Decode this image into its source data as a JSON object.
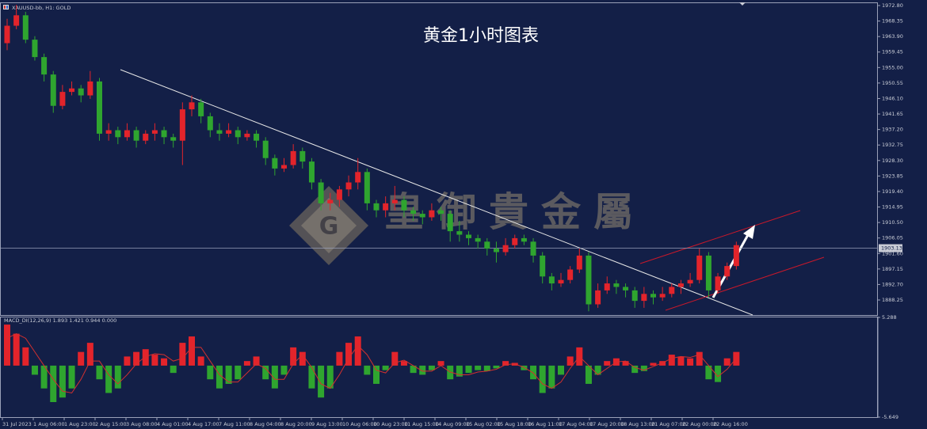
{
  "chart_data": [
    {
      "type": "candlestick",
      "title": "黄金1小时图表",
      "symbol_label": "XAUUSD-bb, H1: GOLD",
      "watermark": "皇御貴金屬",
      "up_color": "#e3242b",
      "down_color": "#2fa52f",
      "open": [
        1962,
        1967,
        1970,
        1963,
        1958,
        1953,
        1944,
        1948,
        1949,
        1947,
        1951,
        1936,
        1937,
        1935,
        1937,
        1934,
        1936,
        1937,
        1935,
        1934,
        1943,
        1945,
        1941,
        1937,
        1936,
        1937,
        1935,
        1936,
        1934,
        1929,
        1926,
        1927,
        1931,
        1928,
        1922,
        1916,
        1917,
        1920,
        1922,
        1925,
        1916,
        1914,
        1916,
        1917,
        1914,
        1913,
        1912,
        1914,
        1913,
        1908,
        1907,
        1906,
        1905,
        1903,
        1902,
        1904,
        1906,
        1905,
        1901,
        1895,
        1893,
        1894,
        1897,
        1901,
        1887,
        1891,
        1893,
        1892,
        1891,
        1888,
        1890,
        1889,
        1890,
        1892,
        1893,
        1894,
        1901,
        1891,
        1895,
        1898
      ],
      "high": [
        1969,
        1973,
        1971,
        1964,
        1959,
        1954,
        1950,
        1951,
        1950,
        1954,
        1952,
        1939,
        1938,
        1939,
        1938,
        1937,
        1939,
        1938,
        1936,
        1945,
        1947,
        1946,
        1942,
        1939,
        1939,
        1938,
        1937,
        1937,
        1935,
        1930,
        1929,
        1933,
        1932,
        1929,
        1923,
        1919,
        1921,
        1924,
        1929,
        1926,
        1917,
        1918,
        1921,
        1918,
        1915,
        1914,
        1916,
        1915,
        1914,
        1911,
        1908,
        1907,
        1906,
        1905,
        1906,
        1907,
        1907,
        1906,
        1902,
        1896,
        1896,
        1898,
        1903,
        1902,
        1893,
        1895,
        1894,
        1893,
        1892,
        1892,
        1891,
        1892,
        1893,
        1894,
        1896,
        1903,
        1902,
        1896,
        1899,
        1905
      ],
      "low": [
        1960,
        1966,
        1962,
        1957,
        1951,
        1942,
        1943,
        1947,
        1945,
        1946,
        1934,
        1934,
        1933,
        1934,
        1932,
        1933,
        1934,
        1933,
        1932,
        1927,
        1941,
        1939,
        1935,
        1934,
        1935,
        1933,
        1934,
        1932,
        1927,
        1924,
        1925,
        1926,
        1926,
        1920,
        1914,
        1914,
        1915,
        1918,
        1920,
        1914,
        1912,
        1912,
        1914,
        1912,
        1911,
        1910,
        1911,
        1911,
        1905,
        1905,
        1904,
        1903,
        1901,
        1899,
        1901,
        1903,
        1904,
        1899,
        1893,
        1891,
        1892,
        1893,
        1896,
        1885,
        1886,
        1890,
        1890,
        1889,
        1886,
        1886,
        1887,
        1888,
        1889,
        1890,
        1892,
        1893,
        1889,
        1890,
        1894,
        1897
      ],
      "close": [
        1967,
        1970,
        1963,
        1958,
        1953,
        1944,
        1948,
        1949,
        1947,
        1951,
        1936,
        1937,
        1935,
        1937,
        1934,
        1936,
        1937,
        1935,
        1934,
        1943,
        1945,
        1941,
        1937,
        1936,
        1937,
        1935,
        1936,
        1934,
        1929,
        1926,
        1927,
        1931,
        1928,
        1922,
        1916,
        1917,
        1920,
        1922,
        1925,
        1916,
        1914,
        1916,
        1917,
        1914,
        1913,
        1912,
        1914,
        1913,
        1908,
        1907,
        1906,
        1905,
        1903,
        1902,
        1904,
        1906,
        1905,
        1901,
        1895,
        1893,
        1894,
        1897,
        1901,
        1887,
        1891,
        1893,
        1892,
        1891,
        1888,
        1890,
        1889,
        1890,
        1892,
        1893,
        1894,
        1901,
        1891,
        1895,
        1898,
        1904
      ],
      "current_price": 1903.13,
      "ylim": [
        1883.93,
        1973.71
      ],
      "yticks": [
        {
          "value": 1972.8,
          "label": "1972.80"
        },
        1968.35,
        {
          "value": 1963.9,
          "label": "1963.90"
        },
        1959.45,
        {
          "value": 1955,
          "label": "1955.00"
        },
        1950.55,
        {
          "value": 1946.1,
          "label": "1946.10"
        },
        1941.65,
        {
          "value": 1937.2,
          "label": "1937.20"
        },
        1932.75,
        {
          "value": 1928.3,
          "label": "1928.30"
        },
        1923.85,
        {
          "value": 1919.4,
          "label": "1919.40"
        },
        1914.95,
        {
          "value": 1910.5,
          "label": "1910.50"
        },
        1906.05,
        {
          "value": 1901.6,
          "label": "1901.60"
        },
        1897.15,
        {
          "value": 1892.7,
          "label": "1892.70"
        },
        1888.25
      ],
      "time_labels": [
        "31 Jul 2023",
        "1 Aug 06:00",
        "1 Aug 23:00",
        "2 Aug 15:00",
        "3 Aug 08:00",
        "4 Aug 01:00",
        "4 Aug 17:00",
        "7 Aug 11:00",
        "8 Aug 04:00",
        "8 Aug 20:00",
        "9 Aug 13:00",
        "10 Aug 06:00",
        "10 Aug 23:00",
        "11 Aug 15:00",
        "14 Aug 09:00",
        "15 Aug 02:00",
        "15 Aug 18:00",
        "16 Aug 11:00",
        "17 Aug 04:00",
        "17 Aug 20:00",
        "18 Aug 13:00",
        "21 Aug 07:00",
        "22 Aug 00:00",
        "22 Aug 16:00"
      ]
    },
    {
      "type": "macd",
      "label": "MACD_DI(12,26,9) 1.893 1.421 0.944 0.000",
      "pos_color": "#e3242b",
      "neg_color": "#2fa52f",
      "signal_color": "#d2302f",
      "histogram": [
        4.5,
        3.5,
        2.0,
        -1.0,
        -2.5,
        -4.0,
        -3.5,
        -2.5,
        1.5,
        2.5,
        -1.5,
        -3.0,
        -2.5,
        1.0,
        1.5,
        1.8,
        1.2,
        0.8,
        -0.8,
        2.5,
        3.2,
        1.0,
        -1.5,
        -2.5,
        -2.0,
        -1.5,
        0.5,
        1.0,
        -1.5,
        -2.5,
        -1.0,
        2.0,
        1.5,
        -2.5,
        -3.5,
        -2.5,
        1.5,
        2.5,
        3.2,
        -1.0,
        -2.0,
        -0.5,
        1.5,
        0.5,
        -0.8,
        -1.0,
        -0.5,
        0.5,
        -1.5,
        -1.2,
        -0.8,
        -0.5,
        -0.6,
        -0.3,
        0.5,
        0.3,
        -0.5,
        -1.5,
        -3.0,
        -2.5,
        -1.0,
        1.0,
        2.0,
        -2.0,
        -1.0,
        0.5,
        0.8,
        0.5,
        -0.8,
        -0.6,
        0.3,
        0.5,
        1.2,
        1.0,
        0.8,
        1.5,
        -1.5,
        -1.8,
        0.8,
        1.5
      ],
      "signal": [
        3.0,
        3.5,
        3.0,
        1.5,
        0,
        -1.5,
        -2.8,
        -3.0,
        -1.5,
        0.5,
        0.5,
        -1.0,
        -2.0,
        -1.0,
        0.2,
        1.0,
        1.3,
        1.2,
        0.5,
        0.8,
        2.0,
        2.0,
        0.5,
        -1.0,
        -1.8,
        -1.8,
        -0.8,
        0.2,
        -0.3,
        -1.5,
        -1.5,
        0.2,
        1.2,
        -0.2,
        -2.0,
        -2.5,
        -1.0,
        0.8,
        2.2,
        1.2,
        -0.5,
        -0.8,
        0.3,
        0.6,
        0,
        -0.6,
        -0.6,
        0,
        -0.7,
        -1.0,
        -1.0,
        -0.7,
        -0.6,
        -0.4,
        0.1,
        0.2,
        -0.2,
        -0.8,
        -2.0,
        -2.5,
        -1.8,
        -0.3,
        1.0,
        0,
        -1.0,
        -0.3,
        0.4,
        0.5,
        -0.2,
        -0.5,
        -0.1,
        0.3,
        0.8,
        1.0,
        0.9,
        1.2,
        0,
        -1.2,
        -0.4,
        0.8
      ],
      "ylim": [
        -5.649,
        5.288
      ],
      "yticks": [
        5.288,
        -5.649
      ]
    }
  ]
}
